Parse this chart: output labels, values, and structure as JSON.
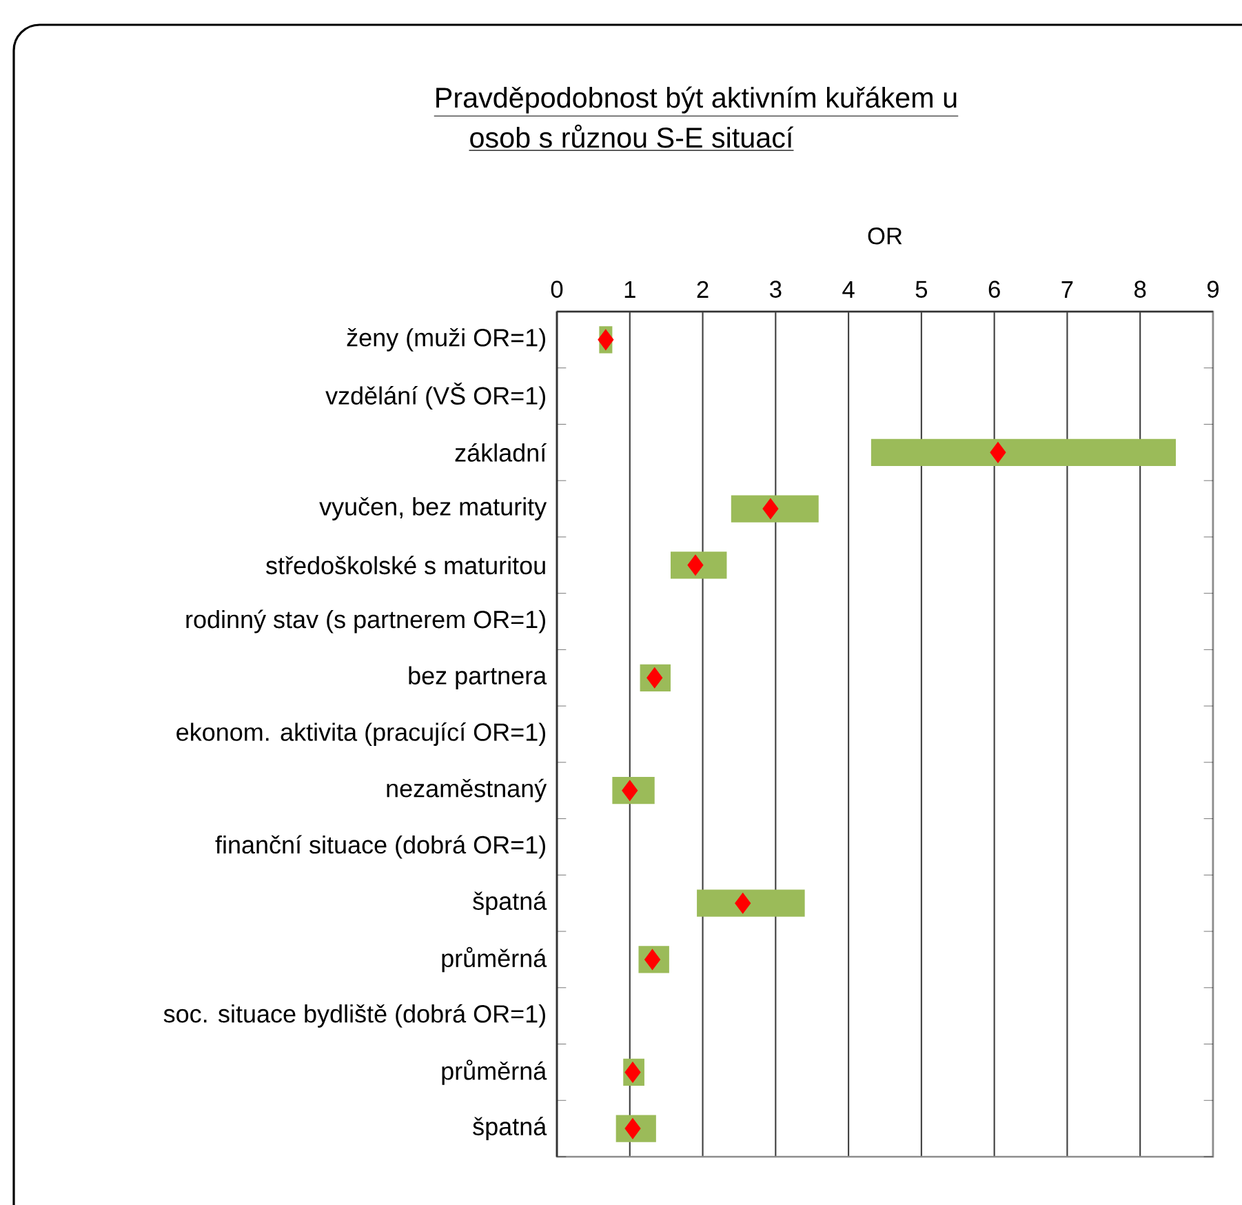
{
  "chart_data": {
    "type": "bar",
    "orientation": "horizontal",
    "title": "Pravděpodobnost být aktivním kuřákem u",
    "subtitle": "osob s různou S-E situací",
    "xlabel": "OR",
    "categories": [
      "ženy (muži OR=1)",
      "vzdělání (VŠ OR=1)",
      "základní",
      "vyučen, bez maturity",
      "středoškolské s maturitou",
      "rodinný stav (s partnerem OR=1)",
      "bez partnera",
      "ekonom. aktivita (pracující OR=1)",
      "nezaměstnaný",
      "finanční situace (dobrá OR=1)",
      "špatná",
      "průměrná",
      "soc. situace bydliště (dobrá OR=1)",
      "průměrná",
      "špatná"
    ],
    "series": [
      {
        "color": "#9bbb59",
        "base": [
          0.58,
          null,
          4.31,
          2.39,
          1.56,
          null,
          1.14,
          null,
          0.76,
          null,
          1.92,
          1.12,
          null,
          0.91,
          0.81
        ],
        "values": [
          0.18,
          null,
          4.18,
          1.2,
          0.77,
          null,
          0.42,
          null,
          0.58,
          null,
          1.48,
          0.42,
          null,
          0.29,
          0.55
        ]
      },
      {
        "type": "scatter",
        "color": "#ff0000",
        "marker": "diamond",
        "values": [
          0.67,
          null,
          6.05,
          2.93,
          1.9,
          null,
          1.34,
          null,
          1.0,
          null,
          2.55,
          1.31,
          null,
          1.04,
          1.04
        ]
      }
    ],
    "xlim": [
      0,
      9
    ],
    "xticks": [
      0,
      1,
      2,
      3,
      4,
      5,
      6,
      7,
      8,
      9
    ],
    "grid": "x"
  }
}
